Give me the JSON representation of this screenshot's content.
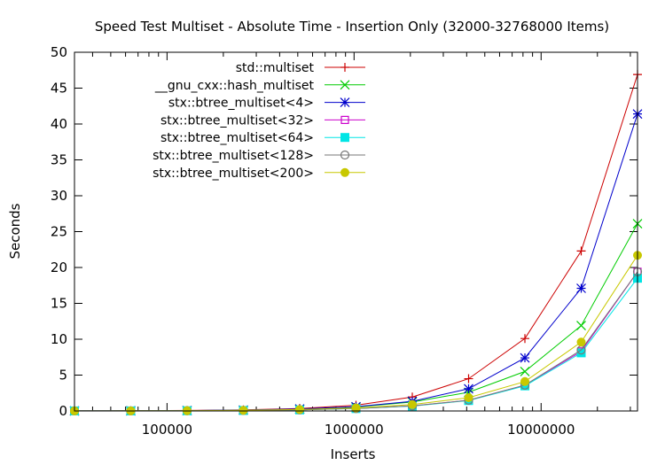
{
  "chart_data": {
    "type": "line",
    "title": "Speed Test Multiset - Absolute Time - Insertion Only (32000-32768000 Items)",
    "xlabel": "Inserts",
    "ylabel": "Seconds",
    "x_scale": "log",
    "xlim": [
      32000,
      32768000
    ],
    "ylim": [
      0,
      50
    ],
    "x_ticks": [
      100000,
      1000000,
      10000000
    ],
    "x_tick_labels": [
      "100000",
      "1000000",
      "10000000"
    ],
    "y_ticks": [
      0,
      5,
      10,
      15,
      20,
      25,
      30,
      35,
      40,
      45,
      50
    ],
    "y_tick_labels": [
      "0",
      "5",
      "10",
      "15",
      "20",
      "25",
      "30",
      "35",
      "40",
      "45",
      "50"
    ],
    "legend_position": "top-left",
    "x": [
      32000,
      64000,
      128000,
      256000,
      512000,
      1024000,
      2048000,
      4096000,
      8192000,
      16384000,
      32768000
    ],
    "series": [
      {
        "name": "std::multiset",
        "color": "#cc0000",
        "marker": "plus",
        "values": [
          0.01,
          0.03,
          0.07,
          0.15,
          0.35,
          0.8,
          1.95,
          4.5,
          10.1,
          22.3,
          46.9
        ]
      },
      {
        "name": "__gnu_cxx::hash_multiset",
        "color": "#00cc00",
        "marker": "cross",
        "values": [
          0.01,
          0.02,
          0.05,
          0.11,
          0.25,
          0.55,
          1.25,
          2.6,
          5.5,
          11.9,
          26.1
        ]
      },
      {
        "name": "stx::btree_multiset<4>",
        "color": "#0000cc",
        "marker": "star",
        "values": [
          0.01,
          0.02,
          0.05,
          0.12,
          0.28,
          0.6,
          1.35,
          3.1,
          7.4,
          17.1,
          41.4
        ]
      },
      {
        "name": "stx::btree_multiset<32>",
        "color": "#cc00cc",
        "marker": "square-open",
        "values": [
          0.01,
          0.01,
          0.03,
          0.07,
          0.16,
          0.35,
          0.7,
          1.5,
          3.6,
          8.3,
          19.4
        ]
      },
      {
        "name": "stx::btree_multiset<64>",
        "color": "#00e5e5",
        "marker": "square-filled",
        "values": [
          0.01,
          0.01,
          0.03,
          0.07,
          0.15,
          0.33,
          0.68,
          1.45,
          3.5,
          8.1,
          18.5
        ]
      },
      {
        "name": "stx::btree_multiset<128>",
        "color": "#777777",
        "marker": "circle-open",
        "values": [
          0.01,
          0.01,
          0.03,
          0.07,
          0.16,
          0.34,
          0.7,
          1.5,
          3.6,
          8.5,
          19.4
        ]
      },
      {
        "name": "stx::btree_multiset<200>",
        "color": "#c8c800",
        "marker": "circle-filled",
        "values": [
          0.01,
          0.02,
          0.04,
          0.09,
          0.2,
          0.42,
          0.9,
          1.85,
          4.1,
          9.6,
          21.7
        ]
      }
    ]
  }
}
